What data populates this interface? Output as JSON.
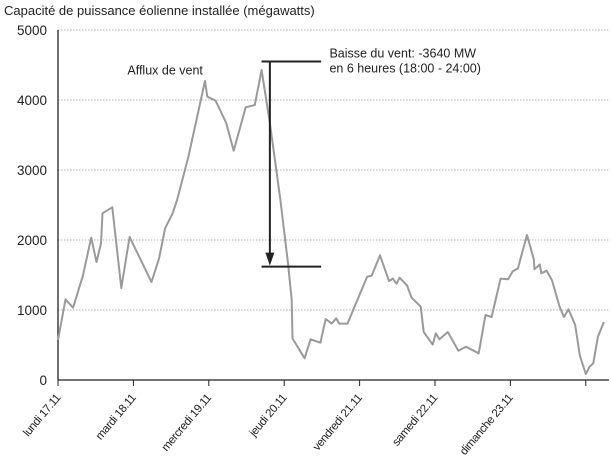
{
  "chart_data": {
    "type": "line",
    "title": "Capacité de puissance éolienne installée (mégawatts)",
    "xlabel": "",
    "ylabel": "",
    "ylim": [
      0,
      5000
    ],
    "yticks": [
      0,
      1000,
      2000,
      3000,
      4000,
      5000
    ],
    "xlim": [
      0,
      7.3
    ],
    "x_unit": "days from lundi 17.11 00:00",
    "xtick_labels": [
      "lundi 17.11",
      "mardi 18.11",
      "mercredi 19.11",
      "jeudi 20.11",
      "vendredi 21.11",
      "samedi 22.11",
      "dimanche 23.11",
      ""
    ],
    "grid": "horizontal-dotted",
    "line_color": "#9a9a9a",
    "series": [
      {
        "x": [
          0,
          0.1,
          0.2,
          0.33,
          0.44,
          0.51,
          0.57,
          0.59,
          0.72,
          0.84,
          0.95,
          1.24,
          1.34,
          1.42,
          1.52,
          1.58,
          1.73,
          1.95,
          1.98,
          2.09,
          2.23,
          2.33,
          2.49,
          2.61,
          2.7,
          2.81,
          2.95,
          3.05,
          3.1,
          3.11,
          3.27,
          3.35,
          3.48,
          3.55,
          3.63,
          3.69,
          3.73,
          3.84,
          4.1,
          4.16,
          4.27,
          4.39,
          4.44,
          4.49,
          4.53,
          4.63,
          4.69,
          4.81,
          4.85,
          4.97,
          5.01,
          5.06,
          5.17,
          5.31,
          5.41,
          5.58,
          5.67,
          5.75,
          5.87,
          5.97,
          6.03,
          6.1,
          6.22,
          6.31,
          6.32,
          6.39,
          6.41,
          6.48,
          6.55,
          6.65,
          6.71,
          6.77,
          6.86,
          6.92,
          7.0,
          7.05,
          7.1,
          7.16,
          7.24
        ],
        "y": [
          571,
          1152,
          1033,
          1490,
          2033,
          1686,
          1952,
          2381,
          2467,
          1314,
          2043,
          1400,
          1733,
          2167,
          2381,
          2571,
          3190,
          4271,
          4048,
          3990,
          3676,
          3276,
          3895,
          3929,
          4429,
          3667,
          2571,
          1667,
          1143,
          595,
          310,
          581,
          533,
          871,
          805,
          881,
          805,
          805,
          1476,
          1490,
          1781,
          1414,
          1448,
          1376,
          1462,
          1348,
          1176,
          1048,
          686,
          505,
          667,
          581,
          686,
          419,
          476,
          381,
          929,
          900,
          1448,
          1438,
          1552,
          1595,
          2071,
          1724,
          1581,
          1652,
          1524,
          1562,
          1429,
          1057,
          900,
          1010,
          786,
          352,
          86,
          190,
          238,
          619,
          829
        ]
      }
    ],
    "annotations": {
      "afflux": {
        "text": "Afflux de vent",
        "x": 0.92,
        "y": 4550
      },
      "baisse": {
        "line1": "Baisse du vent: -3640 MW",
        "line2": "en 6 heures (18:00 - 24:00)",
        "top_y": 4550,
        "bottom_y": 1620,
        "arrow_x": 2.81,
        "bar_x": [
          2.7,
          3.49
        ],
        "text_x": 3.6
      }
    }
  }
}
